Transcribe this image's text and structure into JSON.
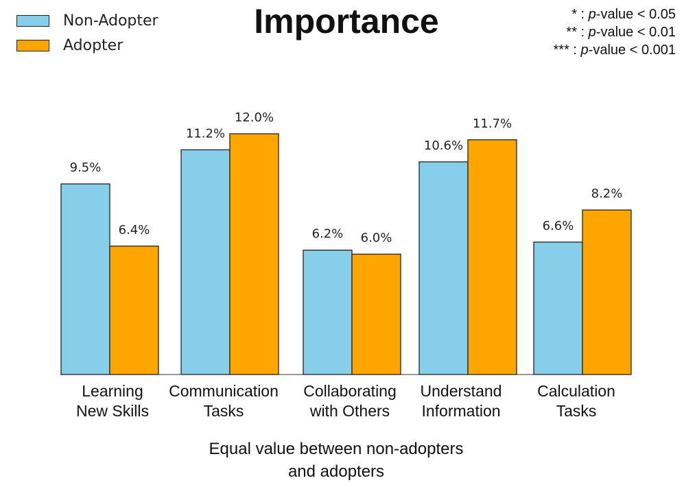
{
  "title": "Importance",
  "legend": [
    {
      "label": "Non-Adopter",
      "color": "#87ceeb"
    },
    {
      "label": "Adopter",
      "color": "#ffa500"
    }
  ],
  "pvalue_notes": [
    {
      "stars": "*",
      "sep": " : ",
      "p": "p",
      "rest": "-value < 0.05"
    },
    {
      "stars": "**",
      "sep": " : ",
      "p": "p",
      "rest": "-value < 0.01"
    },
    {
      "stars": "***",
      "sep": " : ",
      "p": "p",
      "rest": "-value < 0.001"
    }
  ],
  "footer": {
    "line1": "Equal value between non-adopters",
    "line2": "and adopters"
  },
  "chart_data": {
    "type": "bar",
    "title": "Importance",
    "categories": [
      [
        "Learning",
        "New Skills"
      ],
      [
        "Communication",
        "Tasks"
      ],
      [
        "Collaborating",
        "with Others"
      ],
      [
        "Understand",
        "Information"
      ],
      [
        "Calculation",
        "Tasks"
      ]
    ],
    "series": [
      {
        "name": "Non-Adopter",
        "color": "#87ceeb",
        "values": [
          9.5,
          11.2,
          6.2,
          10.6,
          6.6
        ],
        "labels": [
          "9.5%",
          "11.2%",
          "6.2%",
          "10.6%",
          "6.6%"
        ]
      },
      {
        "name": "Adopter",
        "color": "#ffa500",
        "values": [
          6.4,
          12.0,
          6.0,
          11.7,
          8.2
        ],
        "labels": [
          "6.4%",
          "12.0%",
          "6.0%",
          "11.7%",
          "8.2%"
        ]
      }
    ],
    "ylim": [
      0,
      12.0
    ],
    "xlabel": "",
    "ylabel": ""
  }
}
